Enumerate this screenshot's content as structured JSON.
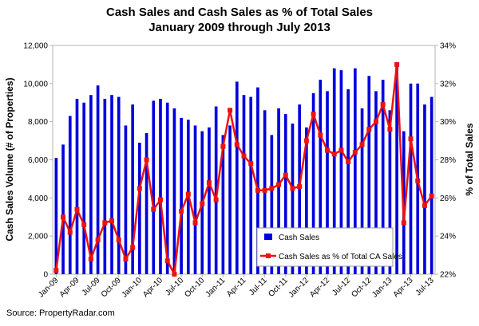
{
  "chart_data": {
    "type": "bar",
    "title": "Cash Sales and Cash Sales as % of Total Sales",
    "subtitle": "January 2009 through July 2013",
    "xlabel": "",
    "ylabel": "Cash Sales Volume (# of Properties)",
    "y2label": "% of Total Sales",
    "ylim": [
      0,
      12000
    ],
    "y2lim": [
      22,
      34
    ],
    "yticks": [
      "0",
      "2,000",
      "4,000",
      "6,000",
      "8,000",
      "10,000",
      "12,000"
    ],
    "y2ticks": [
      "22%",
      "24%",
      "26%",
      "28%",
      "30%",
      "32%",
      "34%"
    ],
    "xtick_labels": [
      "Jan-09",
      "Apr-09",
      "Jul-09",
      "Oct-09",
      "Jan-10",
      "Apr-10",
      "Jul-10",
      "Oct-10",
      "Jan-11",
      "Apr-11",
      "Jul-11",
      "Oct-11",
      "Jan-12",
      "Apr-12",
      "Jul-12",
      "Oct-12",
      "Jan-13",
      "Apr-13",
      "Jul-13"
    ],
    "categories": [
      "Jan-09",
      "Feb-09",
      "Mar-09",
      "Apr-09",
      "May-09",
      "Jun-09",
      "Jul-09",
      "Aug-09",
      "Sep-09",
      "Oct-09",
      "Nov-09",
      "Dec-09",
      "Jan-10",
      "Feb-10",
      "Mar-10",
      "Apr-10",
      "May-10",
      "Jun-10",
      "Jul-10",
      "Aug-10",
      "Sep-10",
      "Oct-10",
      "Nov-10",
      "Dec-10",
      "Jan-11",
      "Feb-11",
      "Mar-11",
      "Apr-11",
      "May-11",
      "Jun-11",
      "Jul-11",
      "Aug-11",
      "Sep-11",
      "Oct-11",
      "Nov-11",
      "Dec-11",
      "Jan-12",
      "Feb-12",
      "Mar-12",
      "Apr-12",
      "May-12",
      "Jun-12",
      "Jul-12",
      "Aug-12",
      "Sep-12",
      "Oct-12",
      "Nov-12",
      "Dec-12",
      "Jan-13",
      "Feb-13",
      "Mar-13",
      "Apr-13",
      "May-13",
      "Jun-13",
      "Jul-13"
    ],
    "series": [
      {
        "name": "Cash Sales",
        "type": "bar",
        "axis": "left",
        "color": "#0000dd",
        "values": [
          6100,
          6800,
          8300,
          9200,
          9000,
          9400,
          9900,
          9200,
          9400,
          9300,
          7800,
          8900,
          6900,
          7400,
          9100,
          9200,
          9000,
          8700,
          8200,
          8100,
          7800,
          7500,
          7700,
          8800,
          7300,
          7800,
          10100,
          9400,
          9300,
          9800,
          8600,
          7300,
          8700,
          8400,
          7900,
          8900,
          7700,
          9500,
          10200,
          9600,
          10800,
          10700,
          9700,
          10800,
          8700,
          10400,
          9600,
          10200,
          8600,
          11000,
          7500,
          10000,
          10000,
          8900,
          9300
        ]
      },
      {
        "name": "Cash Sales as % of Total CA Sales",
        "type": "line",
        "axis": "right",
        "color": "#ee1111",
        "values": [
          22.2,
          25.0,
          24.2,
          25.4,
          24.6,
          22.8,
          23.8,
          24.7,
          24.8,
          23.8,
          22.8,
          23.4,
          26.5,
          28.0,
          25.4,
          25.9,
          22.7,
          22.0,
          25.3,
          26.2,
          24.7,
          25.7,
          26.8,
          25.9,
          28.7,
          30.6,
          28.8,
          28.2,
          27.8,
          26.4,
          26.4,
          26.5,
          26.7,
          27.2,
          26.5,
          26.6,
          29.0,
          30.4,
          29.3,
          28.5,
          28.3,
          28.5,
          27.9,
          28.4,
          28.8,
          29.6,
          30.0,
          30.9,
          29.6,
          33.0,
          24.7,
          29.1,
          26.9,
          25.6,
          26.1
        ]
      }
    ],
    "legend_position": "bottom-right",
    "grid": false
  },
  "source_text": "Source: PropertyRadar.com"
}
